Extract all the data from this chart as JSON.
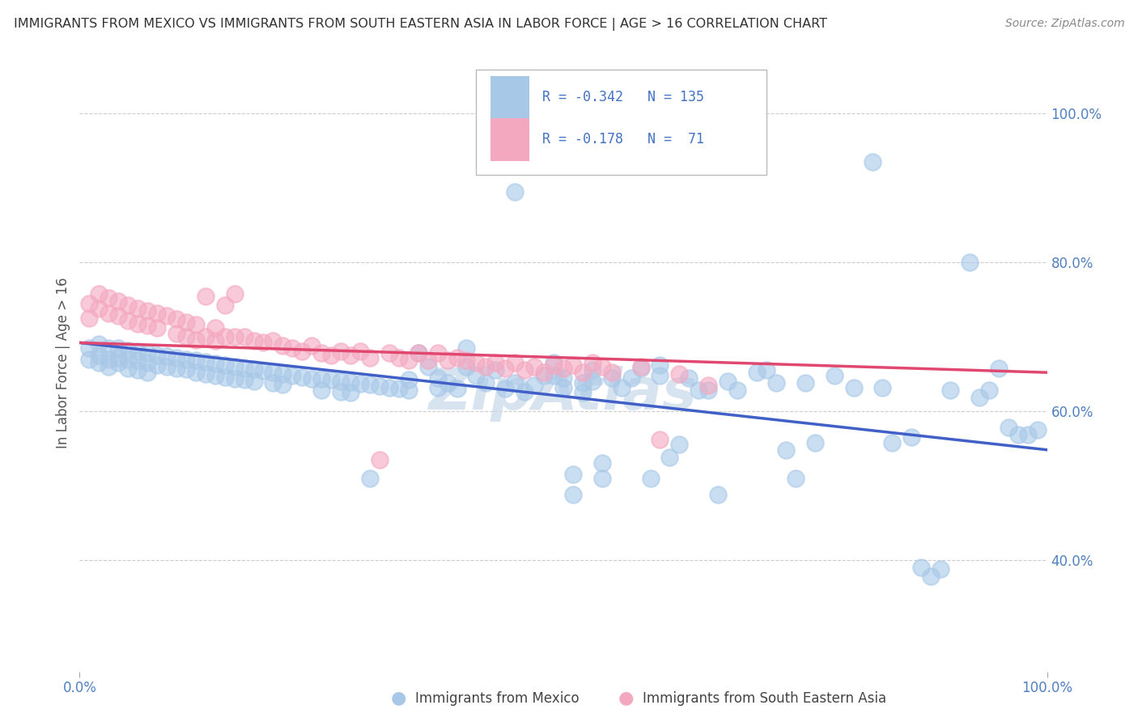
{
  "title": "IMMIGRANTS FROM MEXICO VS IMMIGRANTS FROM SOUTH EASTERN ASIA IN LABOR FORCE | AGE > 16 CORRELATION CHART",
  "source": "Source: ZipAtlas.com",
  "ylabel": "In Labor Force | Age > 16",
  "xlim": [
    0.0,
    1.0
  ],
  "ylim": [
    0.25,
    1.08
  ],
  "y_ticks_right": [
    1.0,
    0.8,
    0.6,
    0.4
  ],
  "y_tick_labels_right": [
    "100.0%",
    "80.0%",
    "60.0%",
    "40.0%"
  ],
  "color_mexico": "#a8c8e8",
  "color_sea": "#f4a8c0",
  "line_color_mexico": "#4060c8",
  "line_color_sea": "#e04870",
  "background_color": "#ffffff",
  "grid_color": "#cccccc",
  "watermark_color": "#c8d8ea",
  "blue_scatter": [
    [
      0.01,
      0.685
    ],
    [
      0.01,
      0.67
    ],
    [
      0.02,
      0.69
    ],
    [
      0.02,
      0.675
    ],
    [
      0.02,
      0.665
    ],
    [
      0.03,
      0.685
    ],
    [
      0.03,
      0.67
    ],
    [
      0.03,
      0.66
    ],
    [
      0.04,
      0.685
    ],
    [
      0.04,
      0.672
    ],
    [
      0.04,
      0.665
    ],
    [
      0.05,
      0.682
    ],
    [
      0.05,
      0.67
    ],
    [
      0.05,
      0.658
    ],
    [
      0.06,
      0.68
    ],
    [
      0.06,
      0.668
    ],
    [
      0.06,
      0.655
    ],
    [
      0.07,
      0.678
    ],
    [
      0.07,
      0.665
    ],
    [
      0.07,
      0.652
    ],
    [
      0.08,
      0.675
    ],
    [
      0.08,
      0.662
    ],
    [
      0.09,
      0.674
    ],
    [
      0.09,
      0.66
    ],
    [
      0.1,
      0.672
    ],
    [
      0.1,
      0.658
    ],
    [
      0.11,
      0.67
    ],
    [
      0.11,
      0.656
    ],
    [
      0.12,
      0.668
    ],
    [
      0.12,
      0.652
    ],
    [
      0.13,
      0.666
    ],
    [
      0.13,
      0.65
    ],
    [
      0.14,
      0.664
    ],
    [
      0.14,
      0.648
    ],
    [
      0.15,
      0.662
    ],
    [
      0.15,
      0.646
    ],
    [
      0.16,
      0.66
    ],
    [
      0.16,
      0.644
    ],
    [
      0.17,
      0.658
    ],
    [
      0.17,
      0.642
    ],
    [
      0.18,
      0.656
    ],
    [
      0.18,
      0.64
    ],
    [
      0.19,
      0.654
    ],
    [
      0.2,
      0.652
    ],
    [
      0.2,
      0.638
    ],
    [
      0.21,
      0.65
    ],
    [
      0.21,
      0.636
    ],
    [
      0.22,
      0.648
    ],
    [
      0.23,
      0.646
    ],
    [
      0.24,
      0.644
    ],
    [
      0.25,
      0.643
    ],
    [
      0.25,
      0.628
    ],
    [
      0.26,
      0.642
    ],
    [
      0.27,
      0.64
    ],
    [
      0.27,
      0.626
    ],
    [
      0.28,
      0.639
    ],
    [
      0.28,
      0.625
    ],
    [
      0.29,
      0.637
    ],
    [
      0.3,
      0.636
    ],
    [
      0.3,
      0.51
    ],
    [
      0.31,
      0.634
    ],
    [
      0.32,
      0.632
    ],
    [
      0.33,
      0.63
    ],
    [
      0.34,
      0.642
    ],
    [
      0.34,
      0.628
    ],
    [
      0.35,
      0.678
    ],
    [
      0.36,
      0.66
    ],
    [
      0.37,
      0.645
    ],
    [
      0.37,
      0.632
    ],
    [
      0.38,
      0.638
    ],
    [
      0.39,
      0.63
    ],
    [
      0.4,
      0.685
    ],
    [
      0.4,
      0.66
    ],
    [
      0.41,
      0.648
    ],
    [
      0.42,
      0.638
    ],
    [
      0.43,
      0.655
    ],
    [
      0.44,
      0.63
    ],
    [
      0.45,
      0.895
    ],
    [
      0.45,
      0.638
    ],
    [
      0.46,
      0.626
    ],
    [
      0.47,
      0.635
    ],
    [
      0.48,
      0.648
    ],
    [
      0.49,
      0.665
    ],
    [
      0.49,
      0.648
    ],
    [
      0.5,
      0.645
    ],
    [
      0.5,
      0.632
    ],
    [
      0.51,
      0.515
    ],
    [
      0.51,
      0.488
    ],
    [
      0.52,
      0.638
    ],
    [
      0.52,
      0.625
    ],
    [
      0.53,
      0.655
    ],
    [
      0.53,
      0.64
    ],
    [
      0.54,
      0.53
    ],
    [
      0.54,
      0.51
    ],
    [
      0.55,
      0.645
    ],
    [
      0.56,
      0.632
    ],
    [
      0.57,
      0.645
    ],
    [
      0.58,
      0.658
    ],
    [
      0.59,
      0.51
    ],
    [
      0.6,
      0.662
    ],
    [
      0.6,
      0.648
    ],
    [
      0.61,
      0.538
    ],
    [
      0.62,
      0.555
    ],
    [
      0.63,
      0.645
    ],
    [
      0.64,
      0.628
    ],
    [
      0.65,
      0.628
    ],
    [
      0.66,
      0.488
    ],
    [
      0.67,
      0.64
    ],
    [
      0.68,
      0.628
    ],
    [
      0.7,
      0.652
    ],
    [
      0.71,
      0.655
    ],
    [
      0.72,
      0.638
    ],
    [
      0.73,
      0.548
    ],
    [
      0.74,
      0.51
    ],
    [
      0.75,
      0.638
    ],
    [
      0.76,
      0.558
    ],
    [
      0.78,
      0.648
    ],
    [
      0.8,
      0.632
    ],
    [
      0.82,
      0.935
    ],
    [
      0.83,
      0.632
    ],
    [
      0.84,
      0.558
    ],
    [
      0.86,
      0.565
    ],
    [
      0.87,
      0.39
    ],
    [
      0.88,
      0.378
    ],
    [
      0.89,
      0.388
    ],
    [
      0.9,
      0.628
    ],
    [
      0.92,
      0.8
    ],
    [
      0.93,
      0.618
    ],
    [
      0.94,
      0.628
    ],
    [
      0.95,
      0.658
    ],
    [
      0.96,
      0.578
    ],
    [
      0.97,
      0.568
    ],
    [
      0.98,
      0.568
    ],
    [
      0.99,
      0.575
    ]
  ],
  "pink_scatter": [
    [
      0.01,
      0.745
    ],
    [
      0.01,
      0.725
    ],
    [
      0.02,
      0.758
    ],
    [
      0.02,
      0.738
    ],
    [
      0.03,
      0.752
    ],
    [
      0.03,
      0.732
    ],
    [
      0.04,
      0.748
    ],
    [
      0.04,
      0.728
    ],
    [
      0.05,
      0.742
    ],
    [
      0.05,
      0.722
    ],
    [
      0.06,
      0.738
    ],
    [
      0.06,
      0.718
    ],
    [
      0.07,
      0.735
    ],
    [
      0.07,
      0.715
    ],
    [
      0.08,
      0.732
    ],
    [
      0.08,
      0.712
    ],
    [
      0.09,
      0.728
    ],
    [
      0.1,
      0.724
    ],
    [
      0.1,
      0.704
    ],
    [
      0.11,
      0.72
    ],
    [
      0.11,
      0.7
    ],
    [
      0.12,
      0.716
    ],
    [
      0.12,
      0.696
    ],
    [
      0.13,
      0.755
    ],
    [
      0.13,
      0.7
    ],
    [
      0.14,
      0.712
    ],
    [
      0.14,
      0.695
    ],
    [
      0.15,
      0.742
    ],
    [
      0.15,
      0.7
    ],
    [
      0.16,
      0.758
    ],
    [
      0.16,
      0.7
    ],
    [
      0.17,
      0.7
    ],
    [
      0.18,
      0.695
    ],
    [
      0.19,
      0.692
    ],
    [
      0.2,
      0.695
    ],
    [
      0.21,
      0.688
    ],
    [
      0.22,
      0.685
    ],
    [
      0.23,
      0.68
    ],
    [
      0.24,
      0.688
    ],
    [
      0.25,
      0.678
    ],
    [
      0.26,
      0.675
    ],
    [
      0.27,
      0.68
    ],
    [
      0.28,
      0.675
    ],
    [
      0.29,
      0.68
    ],
    [
      0.3,
      0.672
    ],
    [
      0.31,
      0.535
    ],
    [
      0.32,
      0.678
    ],
    [
      0.33,
      0.672
    ],
    [
      0.34,
      0.668
    ],
    [
      0.35,
      0.678
    ],
    [
      0.36,
      0.668
    ],
    [
      0.37,
      0.678
    ],
    [
      0.38,
      0.668
    ],
    [
      0.39,
      0.672
    ],
    [
      0.4,
      0.668
    ],
    [
      0.41,
      0.665
    ],
    [
      0.42,
      0.66
    ],
    [
      0.43,
      0.665
    ],
    [
      0.44,
      0.658
    ],
    [
      0.45,
      0.665
    ],
    [
      0.46,
      0.655
    ],
    [
      0.47,
      0.66
    ],
    [
      0.48,
      0.652
    ],
    [
      0.49,
      0.662
    ],
    [
      0.5,
      0.658
    ],
    [
      0.51,
      0.662
    ],
    [
      0.52,
      0.652
    ],
    [
      0.53,
      0.665
    ],
    [
      0.54,
      0.66
    ],
    [
      0.55,
      0.652
    ],
    [
      0.58,
      0.66
    ],
    [
      0.6,
      0.562
    ],
    [
      0.62,
      0.65
    ],
    [
      0.65,
      0.635
    ]
  ],
  "trendline_mexico": {
    "x_start": 0.0,
    "y_start": 0.692,
    "x_end": 1.0,
    "y_end": 0.548
  },
  "trendline_sea": {
    "x_start": 0.0,
    "y_start": 0.692,
    "x_end": 1.0,
    "y_end": 0.652
  }
}
